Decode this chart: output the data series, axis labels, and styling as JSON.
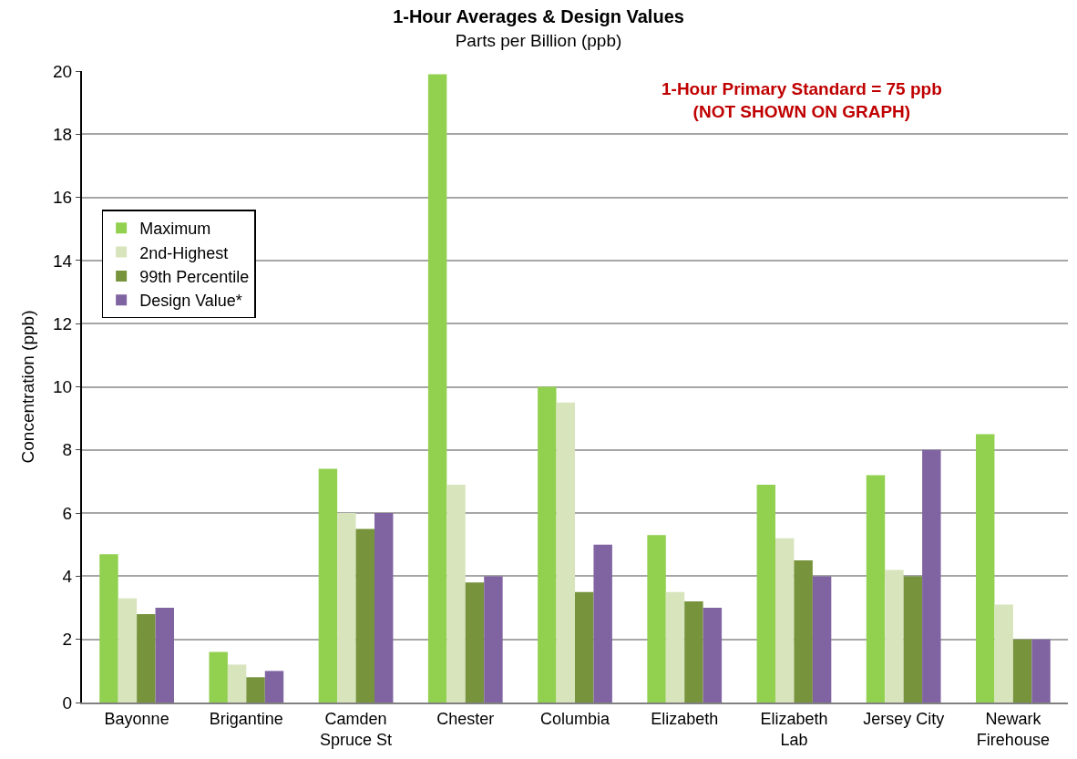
{
  "chart_data": {
    "type": "bar",
    "title": "1-Hour Averages & Design Values",
    "subtitle": "Parts per Billion (ppb)",
    "ylabel": "Concentration (ppb)",
    "categories": [
      "Bayonne",
      "Brigantine",
      "Camden\nSpruce St",
      "Chester",
      "Columbia",
      "Elizabeth",
      "Elizabeth\nLab",
      "Jersey City",
      "Newark\nFirehouse"
    ],
    "series": [
      {
        "name": "Maximum",
        "color": "#92d050",
        "values": [
          4.7,
          1.6,
          7.4,
          19.9,
          10.0,
          5.3,
          6.9,
          7.2,
          8.5
        ]
      },
      {
        "name": "2nd-Highest",
        "color": "#d8e4bc",
        "values": [
          3.3,
          1.2,
          6.0,
          6.9,
          9.5,
          3.5,
          5.2,
          4.2,
          3.1
        ]
      },
      {
        "name": "99th Percentile",
        "color": "#77933c",
        "values": [
          2.8,
          0.8,
          5.5,
          3.8,
          3.5,
          3.2,
          4.5,
          4.0,
          2.0
        ]
      },
      {
        "name": "Design Value*",
        "color": "#8064a2",
        "values": [
          3.0,
          1.0,
          6.0,
          4.0,
          5.0,
          3.0,
          4.0,
          8.0,
          2.0
        ]
      }
    ],
    "annotations": [
      "1-Hour Primary Standard = 75 ppb\n(NOT SHOWN ON GRAPH)"
    ],
    "ylim": [
      0,
      20
    ],
    "yticks": [
      0,
      2,
      4,
      6,
      8,
      10,
      12,
      14,
      16,
      18,
      20
    ],
    "grid": "y",
    "legend": "top left"
  }
}
